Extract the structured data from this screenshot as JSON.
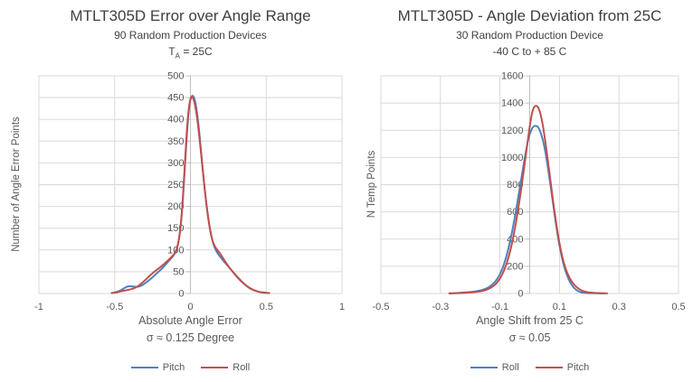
{
  "colors": {
    "background": "#ffffff",
    "blue_series": "#4F81BD",
    "red_series": "#C0504D",
    "gridline": "#D9D9D9",
    "axis_line": "#BFBFBF",
    "title_text": "#3F3F3F",
    "tick_text": "#595959"
  },
  "chart_data": [
    {
      "type": "line",
      "title": "MTLT305D Error over Angle Range",
      "subtitle1": "90 Random Production Devices",
      "subtitle2": {
        "prefix": "T",
        "sub": "A",
        "suffix": " = 25C"
      },
      "ylabel": "Number of Angle Error Points",
      "xlabel_line1": "Absolute Angle Error",
      "xlabel_line2": "σ ≈ 0.125 Degree",
      "x_axis": {
        "min": -1,
        "max": 1,
        "ticks": [
          -1,
          -0.5,
          0,
          0.5,
          1
        ],
        "tick_labels": [
          "-1",
          "-0.5",
          "0",
          "0.5",
          "1"
        ]
      },
      "y_axis": {
        "min": 0,
        "max": 500,
        "ticks": [
          0,
          50,
          100,
          150,
          200,
          250,
          300,
          350,
          400,
          450,
          500
        ],
        "tick_labels": [
          "0",
          "50",
          "100",
          "150",
          "200",
          "250",
          "300",
          "350",
          "400",
          "450",
          "500"
        ]
      },
      "grid": true,
      "legend_position": "bottom",
      "legend": [
        {
          "label": "Pitch",
          "color": "#4F81BD"
        },
        {
          "label": "Roll",
          "color": "#C0504D"
        }
      ],
      "series": [
        {
          "name": "Pitch",
          "color": "#4F81BD",
          "points": [
            [
              -0.52,
              1
            ],
            [
              -0.49,
              3
            ],
            [
              -0.46,
              7
            ],
            [
              -0.43,
              14
            ],
            [
              -0.41,
              17
            ],
            [
              -0.38,
              16
            ],
            [
              -0.35,
              15
            ],
            [
              -0.32,
              18
            ],
            [
              -0.29,
              26
            ],
            [
              -0.26,
              34
            ],
            [
              -0.23,
              44
            ],
            [
              -0.2,
              53
            ],
            [
              -0.17,
              64
            ],
            [
              -0.14,
              76
            ],
            [
              -0.11,
              87
            ],
            [
              -0.09,
              100
            ],
            [
              -0.07,
              135
            ],
            [
              -0.05,
              210
            ],
            [
              -0.03,
              330
            ],
            [
              -0.01,
              432
            ],
            [
              0.01,
              458
            ],
            [
              0.03,
              447
            ],
            [
              0.05,
              400
            ],
            [
              0.07,
              328
            ],
            [
              0.09,
              252
            ],
            [
              0.11,
              190
            ],
            [
              0.13,
              144
            ],
            [
              0.15,
              114
            ],
            [
              0.17,
              97
            ],
            [
              0.19,
              87
            ],
            [
              0.22,
              74
            ],
            [
              0.25,
              62
            ],
            [
              0.28,
              50
            ],
            [
              0.31,
              38
            ],
            [
              0.34,
              27
            ],
            [
              0.37,
              17
            ],
            [
              0.4,
              10
            ],
            [
              0.43,
              6
            ],
            [
              0.46,
              3
            ],
            [
              0.49,
              2
            ],
            [
              0.52,
              1
            ]
          ]
        },
        {
          "name": "Roll",
          "color": "#C0504D",
          "points": [
            [
              -0.52,
              1
            ],
            [
              -0.49,
              2
            ],
            [
              -0.46,
              5
            ],
            [
              -0.43,
              7
            ],
            [
              -0.4,
              9
            ],
            [
              -0.37,
              12
            ],
            [
              -0.34,
              18
            ],
            [
              -0.31,
              27
            ],
            [
              -0.28,
              37
            ],
            [
              -0.25,
              47
            ],
            [
              -0.22,
              55
            ],
            [
              -0.19,
              63
            ],
            [
              -0.16,
              72
            ],
            [
              -0.13,
              82
            ],
            [
              -0.1,
              93
            ],
            [
              -0.08,
              113
            ],
            [
              -0.06,
              165
            ],
            [
              -0.04,
              275
            ],
            [
              -0.02,
              400
            ],
            [
              0.0,
              453
            ],
            [
              0.02,
              450
            ],
            [
              0.04,
              416
            ],
            [
              0.06,
              357
            ],
            [
              0.08,
              287
            ],
            [
              0.1,
              221
            ],
            [
              0.12,
              166
            ],
            [
              0.14,
              127
            ],
            [
              0.16,
              108
            ],
            [
              0.18,
              99
            ],
            [
              0.2,
              90
            ],
            [
              0.23,
              73
            ],
            [
              0.26,
              58
            ],
            [
              0.29,
              45
            ],
            [
              0.32,
              33
            ],
            [
              0.35,
              23
            ],
            [
              0.38,
              15
            ],
            [
              0.41,
              9
            ],
            [
              0.44,
              5
            ],
            [
              0.47,
              2
            ],
            [
              0.5,
              1
            ],
            [
              0.52,
              1
            ]
          ]
        }
      ]
    },
    {
      "type": "line",
      "title": "MTLT305D - Angle Deviation from 25C",
      "subtitle1": "30 Random Production Device",
      "subtitle2": "-40 C to + 85 C",
      "ylabel": "N Temp Points",
      "xlabel_line1": "Angle Shift from 25 C",
      "xlabel_line2": "σ ≈ 0.05",
      "x_axis": {
        "min": -0.5,
        "max": 0.5,
        "ticks": [
          -0.5,
          -0.3,
          -0.1,
          0.1,
          0.3,
          0.5
        ],
        "tick_labels": [
          "-0.5",
          "-0.3",
          "-0.1",
          "0.1",
          "0.3",
          "0.5"
        ]
      },
      "y_axis": {
        "min": 0,
        "max": 1600,
        "ticks": [
          0,
          200,
          400,
          600,
          800,
          1000,
          1200,
          1400,
          1600
        ],
        "tick_labels": [
          "0",
          "200",
          "400",
          "600",
          "800",
          "1000",
          "1200",
          "1400",
          "1600"
        ]
      },
      "grid": true,
      "legend_position": "bottom",
      "legend": [
        {
          "label": "Roll",
          "color": "#4F81BD"
        },
        {
          "label": "Pitch",
          "color": "#C0504D"
        }
      ],
      "series": [
        {
          "name": "Roll",
          "color": "#4F81BD",
          "points": [
            [
              -0.27,
              1
            ],
            [
              -0.25,
              3
            ],
            [
              -0.23,
              6
            ],
            [
              -0.21,
              9
            ],
            [
              -0.19,
              13
            ],
            [
              -0.17,
              20
            ],
            [
              -0.15,
              32
            ],
            [
              -0.13,
              55
            ],
            [
              -0.11,
              100
            ],
            [
              -0.09,
              185
            ],
            [
              -0.07,
              335
            ],
            [
              -0.05,
              555
            ],
            [
              -0.03,
              820
            ],
            [
              -0.01,
              1085
            ],
            [
              0.0,
              1175
            ],
            [
              0.01,
              1225
            ],
            [
              0.02,
              1235
            ],
            [
              0.03,
              1222
            ],
            [
              0.04,
              1165
            ],
            [
              0.05,
              1075
            ],
            [
              0.06,
              945
            ],
            [
              0.07,
              795
            ],
            [
              0.08,
              635
            ],
            [
              0.09,
              480
            ],
            [
              0.1,
              350
            ],
            [
              0.11,
              245
            ],
            [
              0.12,
              165
            ],
            [
              0.13,
              108
            ],
            [
              0.14,
              66
            ],
            [
              0.15,
              38
            ],
            [
              0.16,
              20
            ],
            [
              0.17,
              10
            ],
            [
              0.18,
              5
            ],
            [
              0.19,
              3
            ],
            [
              0.21,
              2
            ],
            [
              0.23,
              1
            ],
            [
              0.25,
              1
            ]
          ]
        },
        {
          "name": "Pitch",
          "color": "#C0504D",
          "points": [
            [
              -0.27,
              1
            ],
            [
              -0.25,
              2
            ],
            [
              -0.23,
              3
            ],
            [
              -0.21,
              6
            ],
            [
              -0.19,
              9
            ],
            [
              -0.17,
              14
            ],
            [
              -0.15,
              23
            ],
            [
              -0.13,
              41
            ],
            [
              -0.11,
              75
            ],
            [
              -0.09,
              145
            ],
            [
              -0.07,
              265
            ],
            [
              -0.05,
              465
            ],
            [
              -0.03,
              740
            ],
            [
              -0.01,
              1065
            ],
            [
              0.0,
              1230
            ],
            [
              0.01,
              1355
            ],
            [
              0.02,
              1385
            ],
            [
              0.03,
              1368
            ],
            [
              0.04,
              1290
            ],
            [
              0.05,
              1158
            ],
            [
              0.06,
              995
            ],
            [
              0.07,
              825
            ],
            [
              0.08,
              655
            ],
            [
              0.09,
              500
            ],
            [
              0.1,
              368
            ],
            [
              0.11,
              262
            ],
            [
              0.12,
              185
            ],
            [
              0.13,
              130
            ],
            [
              0.14,
              92
            ],
            [
              0.15,
              63
            ],
            [
              0.16,
              42
            ],
            [
              0.17,
              27
            ],
            [
              0.18,
              17
            ],
            [
              0.19,
              11
            ],
            [
              0.2,
              7
            ],
            [
              0.22,
              4
            ],
            [
              0.24,
              2
            ],
            [
              0.26,
              1
            ]
          ]
        }
      ]
    }
  ]
}
